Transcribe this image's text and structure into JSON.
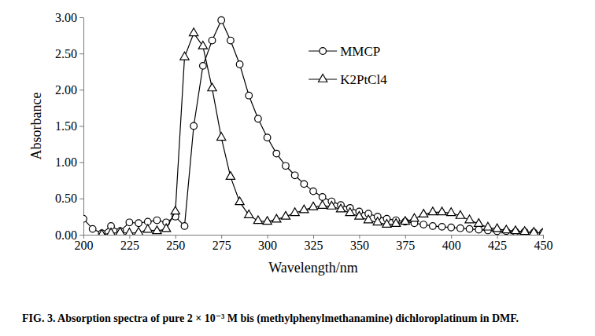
{
  "chart_data": {
    "type": "line",
    "title": "FIG. 3. Absorption spectra of pure 2 × 10⁻³ M bis (methylphenylmethanamine) dichloroplatinum in DMF.",
    "x_label": "Wavelength/nm",
    "y_label": "Absorbance",
    "x": [
      200,
      205,
      210,
      215,
      220,
      225,
      230,
      235,
      240,
      245,
      250,
      255,
      260,
      265,
      270,
      275,
      280,
      285,
      290,
      295,
      300,
      305,
      310,
      315,
      320,
      325,
      330,
      335,
      340,
      345,
      350,
      355,
      360,
      365,
      370,
      375,
      380,
      385,
      390,
      395,
      400,
      405,
      410,
      415,
      420,
      425,
      430,
      435,
      440,
      445,
      450
    ],
    "series": [
      {
        "name": "MMCP",
        "color": "#000000",
        "marker": "circle",
        "line_style": "solid",
        "values": [
          0.22,
          0.08,
          0.02,
          0.12,
          0.05,
          0.17,
          0.16,
          0.18,
          0.2,
          0.17,
          0.25,
          0.12,
          1.5,
          2.33,
          2.68,
          2.96,
          2.68,
          2.35,
          1.92,
          1.6,
          1.34,
          1.12,
          0.95,
          0.82,
          0.7,
          0.6,
          0.52,
          0.46,
          0.41,
          0.37,
          0.32,
          0.29,
          0.25,
          0.22,
          0.2,
          0.18,
          0.16,
          0.14,
          0.12,
          0.11,
          0.1,
          0.09,
          0.08,
          0.07,
          0.06,
          0.05,
          0.05,
          0.04,
          0.04,
          0.03,
          0.03
        ]
      },
      {
        "name": "K2PtCl4",
        "color": "#000000",
        "marker": "triangle",
        "line_style": "solid",
        "values": [
          null,
          null,
          0.0,
          0.02,
          0.03,
          0.02,
          0.03,
          0.07,
          0.05,
          0.08,
          0.32,
          2.45,
          2.78,
          2.6,
          2.02,
          1.34,
          0.8,
          0.45,
          0.27,
          0.19,
          0.18,
          0.21,
          0.25,
          0.3,
          0.34,
          0.38,
          0.4,
          0.39,
          0.35,
          0.3,
          0.25,
          0.2,
          0.17,
          0.14,
          0.15,
          0.18,
          0.22,
          0.28,
          0.31,
          0.31,
          0.3,
          0.26,
          0.2,
          0.15,
          0.1,
          0.08,
          0.06,
          0.05,
          0.04,
          0.03,
          0.02
        ]
      }
    ],
    "xlim": [
      200,
      450
    ],
    "xticks": [
      200,
      225,
      250,
      275,
      300,
      325,
      350,
      375,
      400,
      425,
      450
    ],
    "ylim": [
      0,
      3
    ],
    "yticks": [
      {
        "value": 0,
        "label": "0.00"
      },
      {
        "value": 0.5,
        "label": "0.50"
      },
      {
        "value": 1,
        "label": "1.00"
      },
      {
        "value": 1.5,
        "label": "1.50"
      },
      {
        "value": 2,
        "label": "2.00"
      },
      {
        "value": 2.5,
        "label": "2.50"
      },
      {
        "value": 3,
        "label": "3.00"
      }
    ],
    "grid": false,
    "legend": "upper right"
  }
}
